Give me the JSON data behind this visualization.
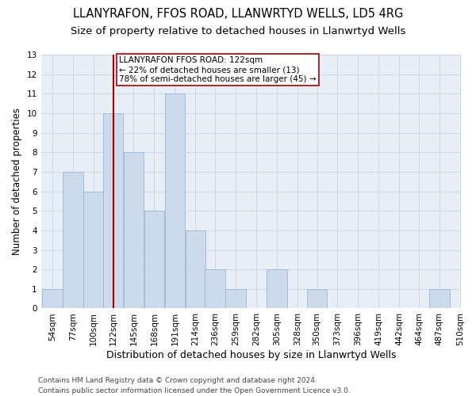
{
  "title1": "LLANYRAFON, FFOS ROAD, LLANWRTYD WELLS, LD5 4RG",
  "title2": "Size of property relative to detached houses in Llanwrtyd Wells",
  "xlabel": "Distribution of detached houses by size in Llanwrtyd Wells",
  "ylabel": "Number of detached properties",
  "bins": [
    54,
    77,
    100,
    122,
    145,
    168,
    191,
    214,
    236,
    259,
    282,
    305,
    328,
    350,
    373,
    396,
    419,
    442,
    464,
    487,
    510
  ],
  "counts": [
    1,
    7,
    6,
    10,
    8,
    5,
    11,
    4,
    2,
    1,
    0,
    2,
    0,
    1,
    0,
    0,
    0,
    0,
    0,
    1
  ],
  "bar_color": "#ccdaec",
  "bar_edge_color": "#9ab8d8",
  "vline_x_index": 3,
  "vline_color": "#aa0000",
  "annotation_text": "LLANYRAFON FFOS ROAD: 122sqm\n← 22% of detached houses are smaller (13)\n78% of semi-detached houses are larger (45) →",
  "annotation_box_color": "white",
  "annotation_box_edge": "#aa0000",
  "ylim": [
    0,
    13
  ],
  "yticks": [
    0,
    1,
    2,
    3,
    4,
    5,
    6,
    7,
    8,
    9,
    10,
    11,
    12,
    13
  ],
  "footer": "Contains HM Land Registry data © Crown copyright and database right 2024.\nContains public sector information licensed under the Open Government Licence v3.0.",
  "grid_color": "#c8d4e8",
  "bg_color": "#e8eef6",
  "title1_fontsize": 10.5,
  "title2_fontsize": 9.5,
  "xlabel_fontsize": 9,
  "ylabel_fontsize": 8.5,
  "tick_fontsize": 7.5,
  "footer_fontsize": 6.5,
  "annotation_fontsize": 7.5
}
